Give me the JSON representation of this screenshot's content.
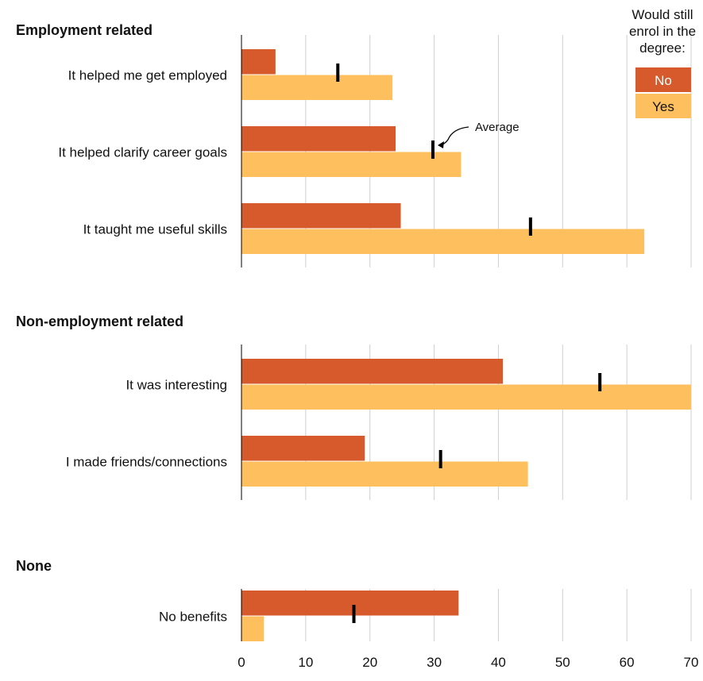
{
  "chart_data": {
    "type": "bar",
    "orientation": "horizontal",
    "xlim": [
      0,
      70
    ],
    "xticks": [
      0,
      10,
      20,
      30,
      40,
      50,
      60,
      70
    ],
    "grid": true,
    "legend": {
      "title_lines": [
        "Would still",
        "enrol in the",
        "degree:"
      ],
      "placement": "top-right",
      "entries": [
        {
          "name": "No",
          "color": "#d75a2c"
        },
        {
          "name": "Yes",
          "color": "#fec05e"
        }
      ]
    },
    "annotation": "Average",
    "groups": [
      {
        "title": "Employment related",
        "categories": [
          {
            "label": "It helped me get employed",
            "no": 5.3,
            "yes": 23.5,
            "average": 15
          },
          {
            "label": "It helped clarify career goals",
            "no": 24,
            "yes": 34.2,
            "average": 29.8
          },
          {
            "label": "It taught me useful skills",
            "no": 24.8,
            "yes": 62.7,
            "average": 45
          }
        ]
      },
      {
        "title": "Non-employment related",
        "categories": [
          {
            "label": "It was interesting",
            "no": 40.7,
            "yes": 70,
            "average": 55.8
          },
          {
            "label": "I made friends/connections",
            "no": 19.2,
            "yes": 44.6,
            "average": 31
          }
        ]
      },
      {
        "title": "None",
        "categories": [
          {
            "label": "No benefits",
            "no": 33.8,
            "yes": 3.5,
            "average": 17.5
          }
        ]
      }
    ]
  }
}
